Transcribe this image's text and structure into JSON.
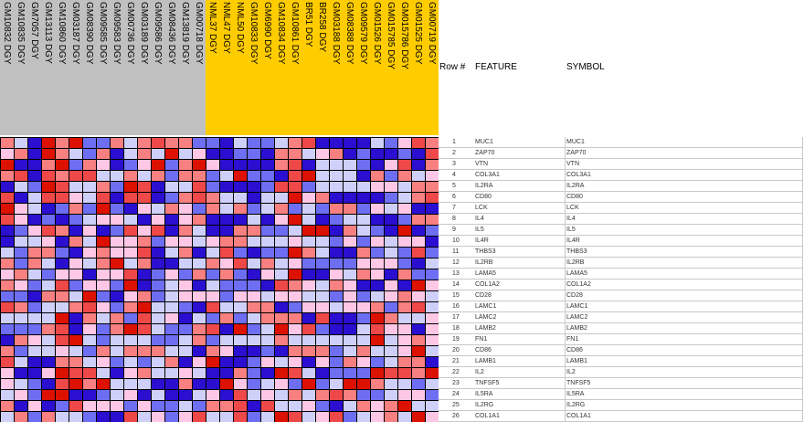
{
  "headers": {
    "row": "Row #",
    "feature": "FEATURE",
    "symbol": "SYMBOL"
  },
  "class_colors": {
    "DGY_group1": "#c0c0c0",
    "DGY_group2": "#ffcc00"
  },
  "chart_data": {
    "type": "heatmap",
    "columns": [
      {
        "label": "GM10832 DGY",
        "group": 1
      },
      {
        "label": "GM10835 DGY",
        "group": 1
      },
      {
        "label": "GM7057 DGY",
        "group": 1
      },
      {
        "label": "GM13113 DGY",
        "group": 1
      },
      {
        "label": "GM10860 DGY",
        "group": 1
      },
      {
        "label": "GM03187 DGY",
        "group": 1
      },
      {
        "label": "GM08390 DGY",
        "group": 1
      },
      {
        "label": "GM09585 DGY",
        "group": 1
      },
      {
        "label": "GM09583 DGY",
        "group": 1
      },
      {
        "label": "GM00736 DGY",
        "group": 1
      },
      {
        "label": "GM03189 DGY",
        "group": 1
      },
      {
        "label": "GM09586 DGY",
        "group": 1
      },
      {
        "label": "GM08436 DGY",
        "group": 1
      },
      {
        "label": "GM13819 DGY",
        "group": 1
      },
      {
        "label": "GM00718 DGY",
        "group": 1
      },
      {
        "label": "NML37 DGY",
        "group": 2
      },
      {
        "label": "NML47 DGY",
        "group": 2
      },
      {
        "label": "NML50 DGY",
        "group": 2
      },
      {
        "label": "GM10833 DGY",
        "group": 2
      },
      {
        "label": "GM6990 DGY",
        "group": 2
      },
      {
        "label": "GM10834 DGY",
        "group": 2
      },
      {
        "label": "GM10861 DGY",
        "group": 2
      },
      {
        "label": "BR51 DGY",
        "group": 2
      },
      {
        "label": "BR258 DGY",
        "group": 2
      },
      {
        "label": "GM03188 DGY",
        "group": 2
      },
      {
        "label": "GM08388 DGY",
        "group": 2
      },
      {
        "label": "GM09579 DGY",
        "group": 2
      },
      {
        "label": "GM01526 DGY",
        "group": 2
      },
      {
        "label": "GM015785 DGY",
        "group": 2
      },
      {
        "label": "GM015786 DGY",
        "group": 2
      },
      {
        "label": "GM01525 DGY",
        "group": 2
      },
      {
        "label": "GM00719 DGY",
        "group": 2
      }
    ],
    "rows": [
      {
        "num": "1",
        "feature": "MUC1",
        "symbol": "MUC1"
      },
      {
        "num": "2",
        "feature": "ZAP70",
        "symbol": "ZAP70"
      },
      {
        "num": "3",
        "feature": "VTN",
        "symbol": "VTN"
      },
      {
        "num": "4",
        "feature": "COL3A1",
        "symbol": "COL3A1"
      },
      {
        "num": "5",
        "feature": "IL2RA",
        "symbol": "IL2RA"
      },
      {
        "num": "6",
        "feature": "CD80",
        "symbol": "CD80"
      },
      {
        "num": "7",
        "feature": "LCK",
        "symbol": "LCK"
      },
      {
        "num": "8",
        "feature": "IL4",
        "symbol": "IL4"
      },
      {
        "num": "9",
        "feature": "IL5",
        "symbol": "IL5"
      },
      {
        "num": "10",
        "feature": "IL4R",
        "symbol": "IL4R"
      },
      {
        "num": "11",
        "feature": "THBS3",
        "symbol": "THBS3"
      },
      {
        "num": "12",
        "feature": "IL2RB",
        "symbol": "IL2RB"
      },
      {
        "num": "13",
        "feature": "LAMA5",
        "symbol": "LAMA5"
      },
      {
        "num": "14",
        "feature": "COL1A2",
        "symbol": "COL1A2"
      },
      {
        "num": "15",
        "feature": "CD28",
        "symbol": "CD28"
      },
      {
        "num": "16",
        "feature": "LAMC1",
        "symbol": "LAMC1"
      },
      {
        "num": "17",
        "feature": "LAMC2",
        "symbol": "LAMC2"
      },
      {
        "num": "18",
        "feature": "LAMB2",
        "symbol": "LAMB2"
      },
      {
        "num": "19",
        "feature": "FN1",
        "symbol": "FN1"
      },
      {
        "num": "20",
        "feature": "CD86",
        "symbol": "CD86"
      },
      {
        "num": "21",
        "feature": "LAMB1",
        "symbol": "LAMB1"
      },
      {
        "num": "22",
        "feature": "IL2",
        "symbol": "IL2"
      },
      {
        "num": "23",
        "feature": "TNFSF5",
        "symbol": "TNFSF5"
      },
      {
        "num": "24",
        "feature": "IL5RA",
        "symbol": "IL5RA"
      },
      {
        "num": "25",
        "feature": "IL2RG",
        "symbol": "IL2RG"
      },
      {
        "num": "26",
        "feature": "COL1A1",
        "symbol": "COL1A1"
      }
    ],
    "color_scale": {
      "low": "#2a0fd0",
      "mid": "#ffffff",
      "high": "#dd1100",
      "range": [
        -2,
        2
      ]
    },
    "values": [
      [
        1,
        -0.5,
        -2,
        2,
        1,
        2,
        -1,
        -1,
        1,
        -0.5,
        1,
        1.5,
        1,
        1,
        -1,
        -1,
        -2,
        -0.5,
        -1,
        -1,
        -0.5,
        1,
        1.5,
        -2,
        -2,
        -2,
        -2,
        -0.5,
        -1,
        0.5,
        1.5,
        1
      ],
      [
        0.5,
        1,
        -2,
        2,
        1,
        -0.5,
        -1,
        1,
        -2,
        -0.5,
        1,
        -0.5,
        2,
        -0.5,
        0.5,
        -2,
        -2,
        -1,
        -1,
        -2,
        1,
        1,
        -0.5,
        0.5,
        1,
        -2,
        -1,
        -2,
        -2,
        -1,
        -2,
        1.5
      ],
      [
        2,
        -2,
        -2,
        1,
        2,
        -1,
        1,
        0.5,
        -2,
        -1,
        0.5,
        2,
        -1,
        1,
        2,
        0.5,
        -2,
        -2,
        -2,
        -2,
        1,
        1.5,
        -2,
        -0.5,
        -0.5,
        -0.5,
        -1,
        -2,
        0.5,
        1.5,
        -2,
        1
      ],
      [
        1,
        1.5,
        -2,
        1.5,
        1,
        1.5,
        1.5,
        -0.5,
        -0.5,
        1,
        -0.5,
        1,
        -1,
        1,
        1,
        -1,
        -0.5,
        2,
        -1,
        -1,
        -2,
        1.5,
        2,
        -0.5,
        -0.5,
        -0.5,
        -2,
        1,
        -1,
        1,
        -0.5,
        0.5
      ],
      [
        -2,
        -0.5,
        -1,
        2,
        1.5,
        -0.5,
        -0.5,
        1,
        -1,
        2,
        1.5,
        -2,
        -0.5,
        -0.5,
        1.5,
        -1,
        -2,
        -2,
        -2,
        -1,
        1.5,
        1.5,
        -1,
        -0.5,
        -0.5,
        -0.5,
        -0.5,
        0.5,
        0.5,
        -0.5,
        1,
        1
      ],
      [
        1.5,
        -2,
        -0.5,
        1.5,
        1.5,
        0.5,
        -0.5,
        1.5,
        -2,
        1.5,
        1.5,
        -2,
        -1,
        1,
        1.5,
        1,
        -0.5,
        -0.5,
        -2,
        -0.5,
        -0.5,
        2,
        0.5,
        1,
        -2,
        -2,
        -2,
        -2,
        -1,
        -0.5,
        1,
        1.5
      ],
      [
        2,
        0.5,
        -0.5,
        -2,
        -1,
        1,
        -1,
        2,
        -1,
        -2,
        0.5,
        -0.5,
        1,
        0.5,
        -1,
        1,
        -0.5,
        1,
        -1,
        -0.5,
        1,
        -1,
        -0.5,
        -1,
        1,
        1,
        -1,
        0.5,
        -0.5,
        0.5,
        -2,
        -2
      ],
      [
        1.5,
        0.5,
        -2,
        -1,
        -2,
        -1,
        -0.5,
        0.5,
        0.5,
        -0.5,
        -2,
        0.5,
        -2,
        0.5,
        1,
        -2,
        -2,
        -2,
        -0.5,
        -2,
        0.5,
        2,
        -0.5,
        -2,
        -1,
        -0.5,
        -0.5,
        -2,
        -2,
        -1,
        1,
        1
      ],
      [
        -2,
        -1,
        0.5,
        1.5,
        1,
        -2,
        0.5,
        -2,
        -1,
        1.5,
        0.5,
        1.5,
        -2,
        1,
        -0.5,
        -2,
        -2,
        1,
        1,
        -1,
        -1,
        -0.5,
        2,
        2,
        -2,
        1,
        -0.5,
        -1,
        -2,
        2,
        -2,
        -1
      ],
      [
        -2,
        -0.5,
        -0.5,
        0.5,
        -2,
        1,
        -0.5,
        2,
        0.5,
        0.5,
        1,
        -1,
        0.5,
        0.5,
        -0.5,
        0.5,
        1,
        1,
        -0.5,
        -0.5,
        -0.5,
        0.5,
        -0.5,
        -0.5,
        -1,
        0.5,
        -1,
        0.5,
        -0.5,
        0.5,
        0.5,
        -2
      ],
      [
        -0.5,
        -1,
        1,
        1,
        -1,
        -2,
        0.5,
        1,
        0.5,
        0.5,
        1.5,
        -2,
        -0.5,
        1,
        -2,
        -0.5,
        1.5,
        -1,
        -2,
        -1,
        -1,
        2,
        1,
        -0.5,
        -2,
        -2,
        1,
        -1,
        -0.5,
        -1,
        1.5,
        -1
      ],
      [
        1,
        -1,
        1,
        -0.5,
        -2,
        0.5,
        -0.5,
        1,
        2,
        -0.5,
        1,
        -2,
        -2,
        -0.5,
        -0.5,
        1,
        0.5,
        1.5,
        -0.5,
        1,
        -0.5,
        0.5,
        -1,
        -1,
        -1,
        -1,
        0.5,
        0.5,
        0.5,
        -1,
        -2,
        -0.5
      ],
      [
        0.5,
        1,
        -0.5,
        -1,
        0.5,
        0.5,
        -2,
        0.5,
        0.5,
        1.5,
        -2,
        -1,
        0.5,
        -1,
        1,
        -1,
        1,
        -1,
        -2,
        0.5,
        -0.5,
        2,
        -2,
        -2,
        0.5,
        -0.5,
        1,
        0.5,
        -2,
        1,
        -1,
        -1
      ],
      [
        1,
        0.5,
        -1,
        -0.5,
        1.5,
        -1,
        0.5,
        0.5,
        -1,
        2,
        -2,
        -1,
        -0.5,
        0.5,
        -2,
        -0.5,
        -1,
        -1,
        -1,
        -2,
        1.5,
        1,
        0.5,
        -0.5,
        1,
        0.5,
        -2,
        -2,
        0.5,
        -2,
        2,
        0.5
      ],
      [
        -1,
        -1,
        -2,
        1,
        1,
        -0.5,
        2,
        -1,
        -2,
        0.5,
        1,
        -1,
        -0.5,
        0.5,
        0.5,
        0.5,
        -1,
        0.5,
        0.5,
        -0.5,
        0.5,
        0.5,
        -0.5,
        -0.5,
        -1,
        0.5,
        -1,
        -0.5,
        0.5,
        1,
        0.5,
        -0.5
      ],
      [
        1.5,
        1,
        -1,
        -0.5,
        -0.5,
        1,
        1.5,
        0.5,
        -1,
        1,
        2,
        -0.5,
        -0.5,
        -1,
        -2,
        1.5,
        -0.5,
        -0.5,
        1,
        1,
        -2,
        -1,
        0.5,
        0.5,
        -0.5,
        0.5,
        0.5,
        1,
        -1,
        1,
        1.5,
        -0.5
      ],
      [
        -0.5,
        -0.5,
        -0.5,
        -0.5,
        2,
        -2,
        1,
        -0.5,
        1,
        -1,
        1.5,
        -0.5,
        0.5,
        -2,
        -0.5,
        -1,
        1,
        -1,
        -0.5,
        1,
        1,
        1,
        -2,
        1.5,
        -2,
        -2,
        -1,
        2,
        1,
        -0.5,
        -0.5,
        0.5
      ],
      [
        -1,
        -1,
        -1,
        1,
        1.5,
        -2,
        0.5,
        -1,
        1,
        2,
        1.5,
        -0.5,
        -1,
        -1,
        1,
        1.5,
        -2,
        2,
        -1,
        -0.5,
        2,
        0.5,
        1.5,
        -1,
        -2,
        -2,
        -0.5,
        1.5,
        0.5,
        0.5,
        -2,
        0.5
      ],
      [
        -2,
        1,
        0.5,
        -0.5,
        1.5,
        2,
        -0.5,
        -1,
        -0.5,
        -0.5,
        -0.5,
        -1,
        -1,
        -0.5,
        1,
        -1,
        -0.5,
        -0.5,
        -0.5,
        -0.5,
        1,
        -0.5,
        -0.5,
        -0.5,
        -0.5,
        -0.5,
        -0.5,
        2,
        -0.5,
        0.5,
        1,
        0.5
      ],
      [
        1,
        -1,
        -0.5,
        -0.5,
        0.5,
        -0.5,
        -1,
        1,
        -0.5,
        1,
        1,
        1,
        -0.5,
        -0.5,
        -2,
        1,
        0.5,
        -2,
        -2,
        -1,
        -2,
        1,
        1,
        1,
        -1,
        -0.5,
        1,
        -0.5,
        -0.5,
        0.5,
        2,
        -0.5
      ],
      [
        1.5,
        -0.5,
        -2,
        -2,
        1,
        1,
        -0.5,
        0.5,
        -1,
        -0.5,
        -1,
        -0.5,
        1,
        -2,
        0.5,
        2,
        -2,
        -2,
        -1,
        0.5,
        -0.5,
        0.5,
        -2,
        0.5,
        -1,
        1,
        0.5,
        -1,
        -0.5,
        1,
        1,
        -2
      ],
      [
        0.5,
        -2,
        -2,
        0.5,
        2,
        1.5,
        1.5,
        -0.5,
        -2,
        0.5,
        1,
        -0.5,
        -0.5,
        0.5,
        -0.5,
        -2,
        -2,
        1,
        -1,
        -2,
        2,
        1.5,
        -0.5,
        -2,
        -1,
        -1,
        -1,
        2,
        1.5,
        1.5,
        1,
        2
      ],
      [
        0.5,
        -0.5,
        -1,
        -2,
        1.5,
        2,
        1,
        2,
        -0.5,
        -0.5,
        -0.5,
        -2,
        -2,
        1,
        -2,
        -2,
        2,
        0.5,
        -1,
        -0.5,
        0.5,
        -1,
        2,
        -1,
        -0.5,
        2,
        2,
        1,
        -0.5,
        -0.5,
        -1,
        -0.5
      ],
      [
        -0.5,
        0.5,
        -1,
        2,
        2,
        -2,
        -2,
        -1,
        -0.5,
        0.5,
        -2,
        -0.5,
        -2,
        -2,
        -0.5,
        0.5,
        -2,
        1.5,
        -0.5,
        0.5,
        -0.5,
        1,
        -0.5,
        1,
        1.5,
        1,
        -1,
        -1,
        -0.5,
        0.5,
        0.5,
        -1
      ],
      [
        1,
        -2,
        0.5,
        -2,
        -1,
        1.5,
        0.5,
        0.5,
        0.5,
        -1,
        0.5,
        -1,
        -1,
        -0.5,
        -1,
        1,
        1,
        1.5,
        -2,
        1.5,
        -0.5,
        -0.5,
        0.5,
        -1,
        -2,
        -0.5,
        1,
        0.5,
        1,
        2,
        -0.5,
        -0.5
      ],
      [
        -0.5,
        1,
        -1,
        1,
        -0.5,
        -0.5,
        -1,
        -2,
        -2,
        1.5,
        -0.5,
        0.5,
        -1,
        0.5,
        1.5,
        -0.5,
        -0.5,
        1.5,
        -1,
        -0.5,
        2,
        1.5,
        -0.5,
        0.5,
        1.5,
        -1,
        -0.5,
        0.5,
        1,
        -0.5,
        2,
        0.5
      ]
    ]
  }
}
